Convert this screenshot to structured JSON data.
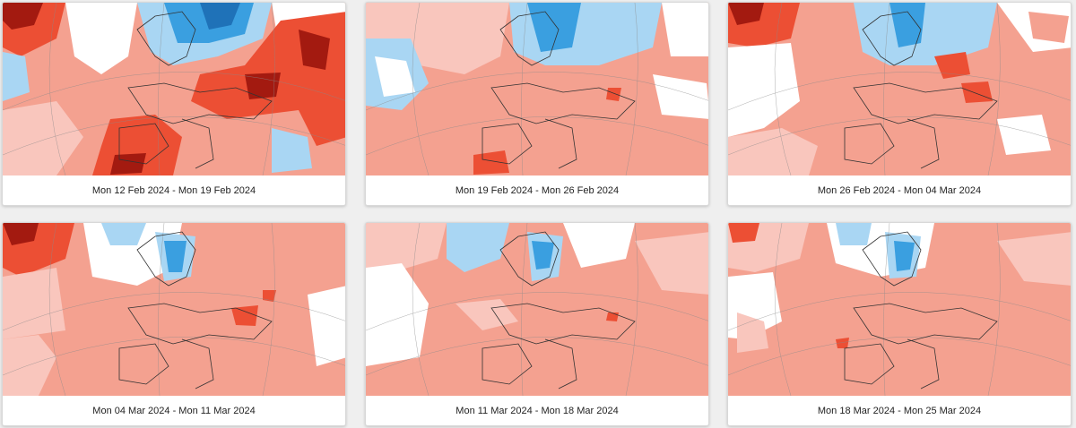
{
  "colors": {
    "anomaly_strong_cold": "#3a9fe0",
    "anomaly_cold": "#a9d6f3",
    "anomaly_slight_cold": "#d9eefa",
    "anomaly_neutral": "#ffffff",
    "anomaly_slight_warm": "#f9c6bd",
    "anomaly_warm": "#f4a190",
    "anomaly_strong_warm": "#ec4f34",
    "anomaly_extreme_warm": "#a31a10"
  },
  "panels": [
    {
      "label": "Mon 12 Feb 2024 - Mon 19 Feb 2024"
    },
    {
      "label": "Mon 19 Feb 2024 - Mon 26 Feb 2024"
    },
    {
      "label": "Mon 26 Feb 2024 - Mon 04 Mar 2024"
    },
    {
      "label": "Mon 04 Mar 2024 - Mon 11 Mar 2024"
    },
    {
      "label": "Mon 11 Mar 2024 - Mon 18 Mar 2024"
    },
    {
      "label": "Mon 18 Mar 2024 - Mon 25 Mar 2024"
    }
  ]
}
